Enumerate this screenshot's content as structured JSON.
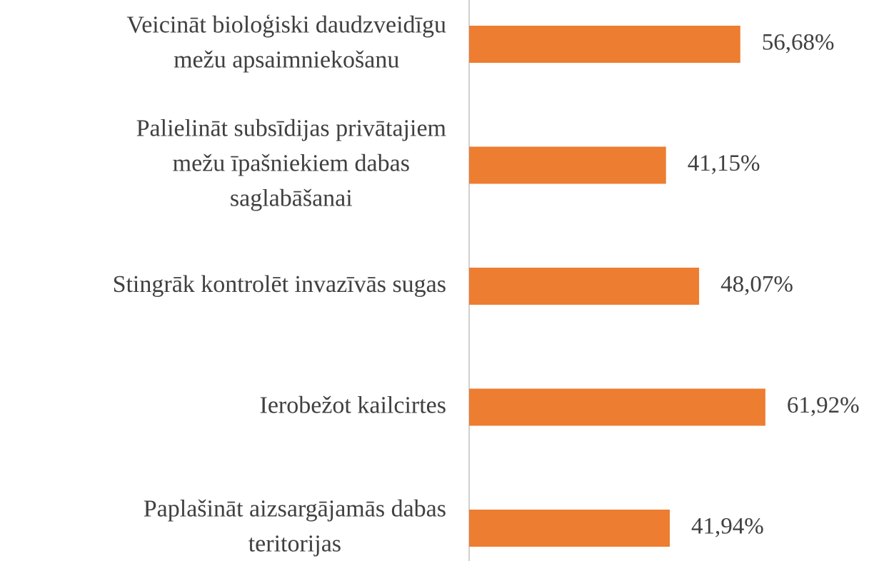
{
  "chart_data": {
    "type": "barh",
    "categories": [
      "Veicināt bioloģiski daudzveidīgu\nmežu apsaimniekošanu",
      "Palielināt subsīdijas privātajiem\nmežu īpašniekiem dabas\nsaglabāšanai",
      "Stingrāk kontrolēt invazīvās sugas",
      "Ierobežot kailcirtes",
      "Paplašināt aizsargājamās dabas\nteritorijas"
    ],
    "values": [
      56.68,
      41.15,
      48.07,
      61.92,
      41.94
    ],
    "value_labels": [
      "56,68%",
      "41,15%",
      "48,07%",
      "61,92%",
      "41,94%"
    ],
    "color": "#ed7d31"
  }
}
